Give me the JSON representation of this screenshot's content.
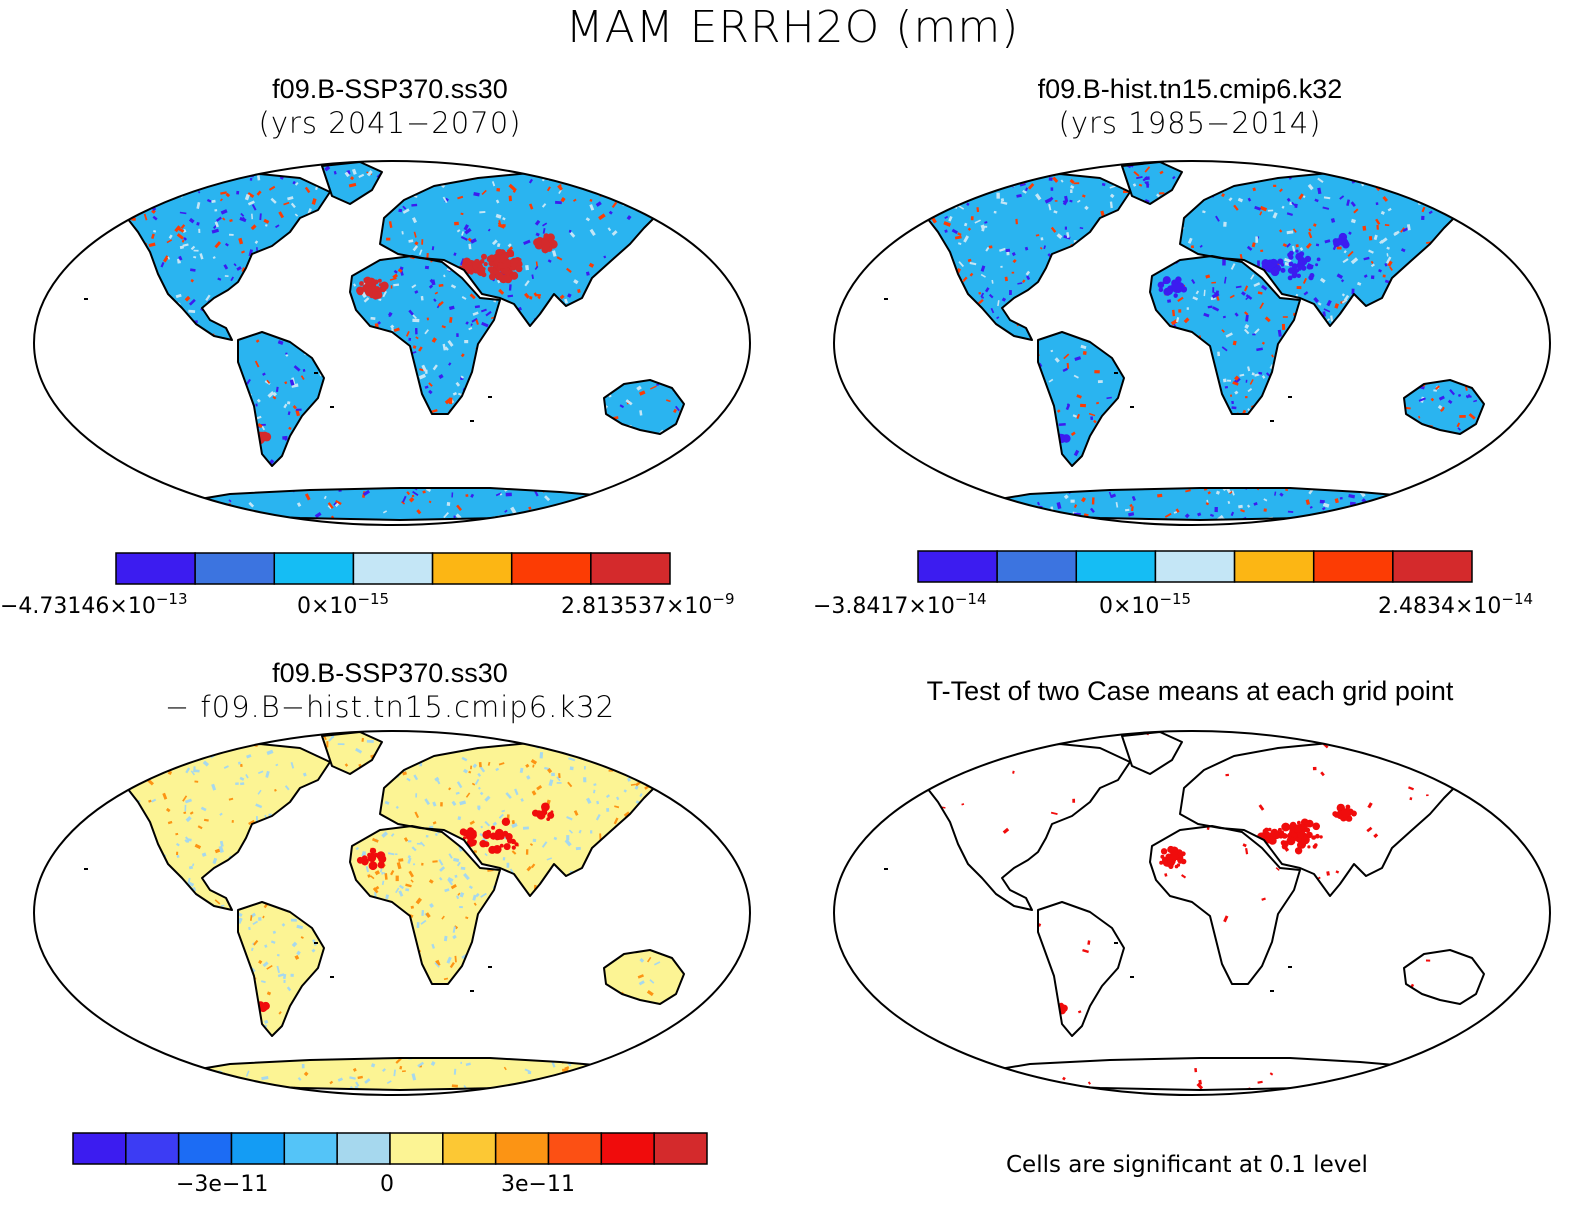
{
  "title": "MAM ERRH2O (mm)",
  "panels": [
    {
      "id": "tl",
      "title": "f09.B-SSP370.ss30",
      "subtitle": "(yrs 2041−2070)",
      "colorbar": {
        "colors": [
          "#3c1cf0",
          "#3c74e0",
          "#15bdf4",
          "#c4e6f6",
          "#fcb614",
          "#fc3c04",
          "#d42a2c"
        ],
        "labels": [
          {
            "mant": "−4.73146×10",
            "exp": "−13"
          },
          {
            "mant": "0×10",
            "exp": "−15"
          },
          {
            "mant": "2.813537×10",
            "exp": "−9"
          }
        ]
      }
    },
    {
      "id": "tr",
      "title": "f09.B-hist.tn15.cmip6.k32",
      "subtitle": "(yrs 1985−2014)",
      "colorbar": {
        "colors": [
          "#3c1cf0",
          "#3c74e0",
          "#15bdf4",
          "#c4e6f6",
          "#fcb614",
          "#fc3c04",
          "#d42a2c"
        ],
        "labels": [
          {
            "mant": "−3.8417×10",
            "exp": "−14"
          },
          {
            "mant": "0×10",
            "exp": "−15"
          },
          {
            "mant": "2.4834×10",
            "exp": "−14"
          }
        ]
      }
    },
    {
      "id": "bl",
      "title": "f09.B-SSP370.ss30",
      "subtitle": "− f09.B−hist.tn15.cmip6.k32",
      "colorbar": {
        "colors": [
          "#3c1cf0",
          "#3c3cf4",
          "#1c6cf4",
          "#149cf4",
          "#54c4f8",
          "#a6d8ee",
          "#fcf494",
          "#fcc834",
          "#fc9414",
          "#fc5014",
          "#f00c0c",
          "#d42a2c"
        ],
        "labels": [
          "−3e−11",
          "0",
          "3e−11"
        ]
      }
    },
    {
      "id": "br",
      "title": "T-Test of two Case means at each grid point",
      "note": "Cells are significant at 0.1 level"
    }
  ],
  "map_colors": {
    "tl": {
      "land": "#2ab4f0",
      "speck1": "#3c1cf0",
      "speck2": "#fc3c04",
      "speck3": "#c4e6f6",
      "blob": "#d42a2c"
    },
    "tr": {
      "land": "#2ab4f0",
      "speck1": "#3c1cf0",
      "speck2": "#fc3c04",
      "speck3": "#c4e6f6",
      "blob": "#3c1cf0"
    },
    "bl": {
      "land": "#fcf494",
      "speck1": "#a6d8ee",
      "speck2": "#fc9414",
      "speck3": "#a6d8ee",
      "blob": "#f00c0c"
    },
    "br": {
      "land": "#ffffff",
      "speck1": "#f00c0c",
      "speck2": "#f00c0c",
      "speck3": "#ffffff",
      "blob": "#f00c0c"
    }
  }
}
